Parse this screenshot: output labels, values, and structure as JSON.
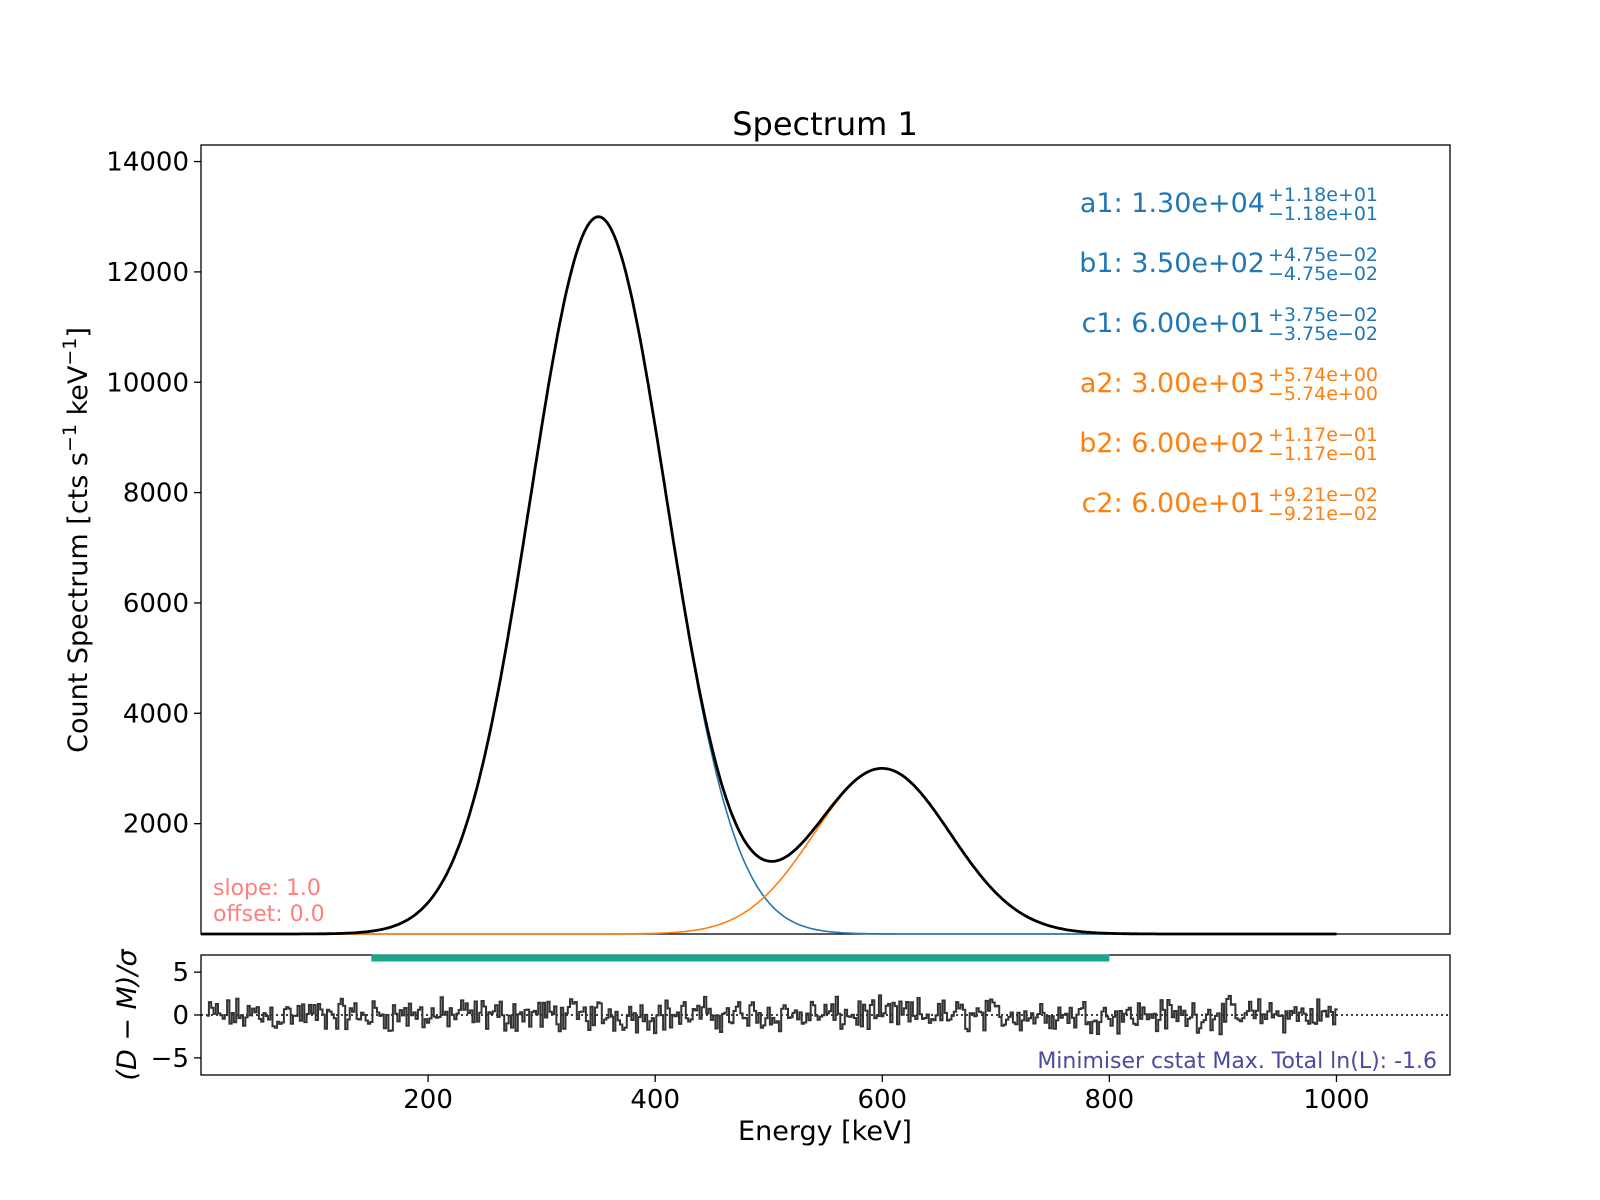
{
  "chart_data": {
    "type": "line",
    "title": "Spectrum 1",
    "main_panel": {
      "ylabel": "Count Spectrum [cts s",
      "ylabel_exp1": "−1",
      "ylabel_mid": " keV",
      "ylabel_exp2": "−1",
      "ylabel_end": "]",
      "xlim": [
        0,
        1100
      ],
      "ylim": [
        0,
        14300
      ],
      "yticks": [
        2000,
        4000,
        6000,
        8000,
        10000,
        12000,
        14000
      ],
      "ytick_labels": [
        "2000",
        "4000",
        "6000",
        "8000",
        "10000",
        "12000",
        "14000"
      ],
      "x_range": [
        0,
        1000
      ],
      "series": [
        {
          "name": "",
          "color": "#1f77b4",
          "component": "gaussian",
          "a": 13000,
          "b": 350,
          "c": 60
        },
        {
          "name": "",
          "color": "#ff7f0e",
          "component": "gaussian",
          "a": 3000,
          "b": 600,
          "c": 60
        },
        {
          "name": "",
          "color": "#000000",
          "component": "sum"
        }
      ],
      "annotations": [
        {
          "label": "a1: 1.30e+04",
          "plus": "+1.18e+01",
          "minus": "−1.18e+01",
          "color": "#1f77b4"
        },
        {
          "label": "b1: 3.50e+02",
          "plus": "+4.75e−02",
          "minus": "−4.75e−02",
          "color": "#1f77b4"
        },
        {
          "label": "c1: 6.00e+01",
          "plus": "+3.75e−02",
          "minus": "−3.75e−02",
          "color": "#1f77b4"
        },
        {
          "label": "a2: 3.00e+03",
          "plus": "+5.74e+00",
          "minus": "−5.74e+00",
          "color": "#ff7f0e"
        },
        {
          "label": "b2: 6.00e+02",
          "plus": "+1.17e−01",
          "minus": "−1.17e−01",
          "color": "#ff7f0e"
        },
        {
          "label": "c2: 6.00e+01",
          "plus": "+9.21e−02",
          "minus": "−9.21e−02",
          "color": "#ff7f0e"
        }
      ],
      "notes": {
        "slope": "slope: 1.0",
        "offset": "offset: 0.0",
        "color": "#ff7f7f"
      }
    },
    "residual_panel": {
      "ylabel": "(D − M)/σ",
      "xlabel": "Energy [keV]",
      "ylim": [
        -7,
        7
      ],
      "yticks": [
        -5,
        0,
        5
      ],
      "ytick_labels": [
        "−5",
        "0",
        "5"
      ],
      "xticks": [
        200,
        400,
        600,
        800,
        1000
      ],
      "xtick_labels": [
        "200",
        "400",
        "600",
        "800",
        "1000"
      ],
      "residual_color": "#333333",
      "residual_amplitude": 1.5,
      "fit_range": [
        150,
        800
      ],
      "fit_range_color": "#1aa58a",
      "zero_line": "dotted",
      "footer": "Minimiser cstat Max. Total ln(L): -1.6",
      "footer_color": "#4a4aa0"
    }
  }
}
